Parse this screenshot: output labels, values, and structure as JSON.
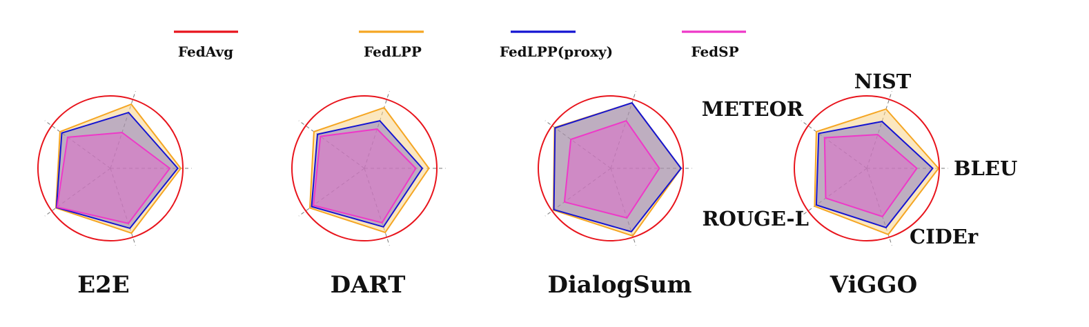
{
  "chart_data": {
    "type": "radar",
    "axes": [
      "BLEU",
      "NIST",
      "METEOR",
      "ROUGE-L",
      "CIDEr"
    ],
    "legend": {
      "placement": "top",
      "entries": [
        {
          "name": "FedAvg",
          "color": "#e8141c"
        },
        {
          "name": "FedLPP",
          "color": "#f5a623"
        },
        {
          "name": "FedLPP(proxy)",
          "color": "#1414d2"
        },
        {
          "name": "FedSP",
          "color": "#ee38c8"
        }
      ]
    },
    "axis_labels_shown_on": "ViGGO",
    "rmax": 1.0,
    "grid": "dashed radial spokes",
    "panels": [
      {
        "title": "E2E",
        "series": [
          {
            "name": "FedAvg",
            "values": [
              1.0,
              1.0,
              1.0,
              1.0,
              1.0
            ]
          },
          {
            "name": "FedLPP",
            "values": [
              0.97,
              0.93,
              0.86,
              0.93,
              0.94
            ]
          },
          {
            "name": "FedLPP(proxy)",
            "values": [
              0.93,
              0.81,
              0.83,
              0.92,
              0.87
            ]
          },
          {
            "name": "FedSP",
            "values": [
              0.82,
              0.52,
              0.73,
              0.91,
              0.8
            ]
          }
        ]
      },
      {
        "title": "DART",
        "series": [
          {
            "name": "FedAvg",
            "values": [
              1.0,
              1.0,
              1.0,
              1.0,
              1.0
            ]
          },
          {
            "name": "FedLPP",
            "values": [
              0.89,
              0.88,
              0.86,
              0.93,
              0.93
            ]
          },
          {
            "name": "FedLPP(proxy)",
            "values": [
              0.8,
              0.69,
              0.8,
              0.9,
              0.85
            ]
          },
          {
            "name": "FedSP",
            "values": [
              0.71,
              0.57,
              0.75,
              0.87,
              0.79
            ]
          }
        ]
      },
      {
        "title": "DialogSum",
        "series": [
          {
            "name": "FedAvg",
            "values": [
              1.0,
              1.0,
              1.0,
              1.0,
              1.0
            ]
          },
          {
            "name": "FedLPP",
            "values": [
              0.97,
              0.95,
              0.96,
              0.98,
              0.98
            ]
          },
          {
            "name": "FedLPP(proxy)",
            "values": [
              0.97,
              0.95,
              0.95,
              0.97,
              0.92
            ]
          },
          {
            "name": "FedSP",
            "values": [
              0.67,
              0.69,
              0.68,
              0.79,
              0.72
            ]
          }
        ]
      },
      {
        "title": "ViGGO",
        "series": [
          {
            "name": "FedAvg",
            "values": [
              1.0,
              1.0,
              1.0,
              1.0,
              1.0
            ]
          },
          {
            "name": "FedLPP",
            "values": [
              0.99,
              0.86,
              0.86,
              0.89,
              0.96
            ]
          },
          {
            "name": "FedLPP(proxy)",
            "values": [
              0.91,
              0.68,
              0.82,
              0.86,
              0.86
            ]
          },
          {
            "name": "FedSP",
            "values": [
              0.69,
              0.49,
              0.72,
              0.7,
              0.7
            ]
          }
        ]
      }
    ]
  }
}
